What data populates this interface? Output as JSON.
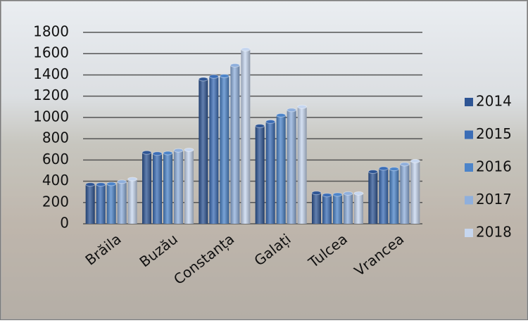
{
  "chart_data": {
    "type": "bar",
    "categories": [
      "Brăila",
      "Buzău",
      "Constanța",
      "Galați",
      "Tulcea",
      "Vrancea"
    ],
    "series": [
      {
        "name": "2014",
        "color": "#2e5594",
        "values": [
          370,
          670,
          1360,
          920,
          290,
          490
        ]
      },
      {
        "name": "2015",
        "color": "#3b6db6",
        "values": [
          370,
          660,
          1385,
          960,
          270,
          520
        ]
      },
      {
        "name": "2016",
        "color": "#4c84c9",
        "values": [
          375,
          665,
          1390,
          1020,
          275,
          515
        ]
      },
      {
        "name": "2017",
        "color": "#8fafdc",
        "values": [
          395,
          690,
          1490,
          1070,
          285,
          560
        ]
      },
      {
        "name": "2018",
        "color": "#c6d6ef",
        "values": [
          420,
          695,
          1640,
          1100,
          285,
          590
        ]
      }
    ],
    "ylim": [
      0,
      1800
    ],
    "yticks": [
      0,
      200,
      400,
      600,
      800,
      1000,
      1200,
      1400,
      1600,
      1800
    ],
    "grid": true,
    "legend": "right"
  }
}
